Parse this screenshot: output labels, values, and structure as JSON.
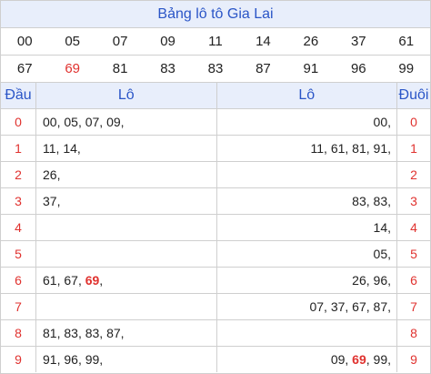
{
  "title": "Bảng lô tô Gia Lai",
  "numbers_row1": [
    {
      "v": "00",
      "hl": false
    },
    {
      "v": "05",
      "hl": false
    },
    {
      "v": "07",
      "hl": false
    },
    {
      "v": "09",
      "hl": false
    },
    {
      "v": "11",
      "hl": false
    },
    {
      "v": "14",
      "hl": false
    },
    {
      "v": "26",
      "hl": false
    },
    {
      "v": "37",
      "hl": false
    },
    {
      "v": "61",
      "hl": false
    }
  ],
  "numbers_row2": [
    {
      "v": "67",
      "hl": false
    },
    {
      "v": "69",
      "hl": true
    },
    {
      "v": "81",
      "hl": false
    },
    {
      "v": "83",
      "hl": false
    },
    {
      "v": "83",
      "hl": false
    },
    {
      "v": "87",
      "hl": false
    },
    {
      "v": "91",
      "hl": false
    },
    {
      "v": "96",
      "hl": false
    },
    {
      "v": "99",
      "hl": false
    }
  ],
  "headers": {
    "dau": "Đầu",
    "lo_left": "Lô",
    "lo_right": "Lô",
    "duoi": "Đuôi"
  },
  "rows": [
    {
      "dau": "0",
      "left": [
        {
          "v": "00"
        },
        {
          "v": "05"
        },
        {
          "v": "07"
        },
        {
          "v": "09"
        }
      ],
      "right": [
        {
          "v": "00"
        }
      ],
      "duoi": "0"
    },
    {
      "dau": "1",
      "left": [
        {
          "v": "11"
        },
        {
          "v": "14"
        }
      ],
      "right": [
        {
          "v": "11"
        },
        {
          "v": "61"
        },
        {
          "v": "81"
        },
        {
          "v": "91"
        }
      ],
      "duoi": "1"
    },
    {
      "dau": "2",
      "left": [
        {
          "v": "26"
        }
      ],
      "right": [],
      "duoi": "2"
    },
    {
      "dau": "3",
      "left": [
        {
          "v": "37"
        }
      ],
      "right": [
        {
          "v": "83"
        },
        {
          "v": "83"
        }
      ],
      "duoi": "3"
    },
    {
      "dau": "4",
      "left": [],
      "right": [
        {
          "v": "14"
        }
      ],
      "duoi": "4"
    },
    {
      "dau": "5",
      "left": [],
      "right": [
        {
          "v": "05"
        }
      ],
      "duoi": "5"
    },
    {
      "dau": "6",
      "left": [
        {
          "v": "61"
        },
        {
          "v": "67"
        },
        {
          "v": "69",
          "hl": true
        }
      ],
      "right": [
        {
          "v": "26"
        },
        {
          "v": "96"
        }
      ],
      "duoi": "6"
    },
    {
      "dau": "7",
      "left": [],
      "right": [
        {
          "v": "07"
        },
        {
          "v": "37"
        },
        {
          "v": "67"
        },
        {
          "v": "87"
        }
      ],
      "duoi": "7"
    },
    {
      "dau": "8",
      "left": [
        {
          "v": "81"
        },
        {
          "v": "83"
        },
        {
          "v": "83"
        },
        {
          "v": "87"
        }
      ],
      "right": [],
      "duoi": "8"
    },
    {
      "dau": "9",
      "left": [
        {
          "v": "91"
        },
        {
          "v": "96"
        },
        {
          "v": "99"
        }
      ],
      "right": [
        {
          "v": "09"
        },
        {
          "v": "69",
          "hl": true
        },
        {
          "v": "99"
        }
      ],
      "duoi": "9"
    }
  ],
  "colors": {
    "accent": "#2a55c7",
    "highlight": "#e0322f",
    "header_bg": "#e8eefb",
    "border": "#cfcfcf"
  }
}
